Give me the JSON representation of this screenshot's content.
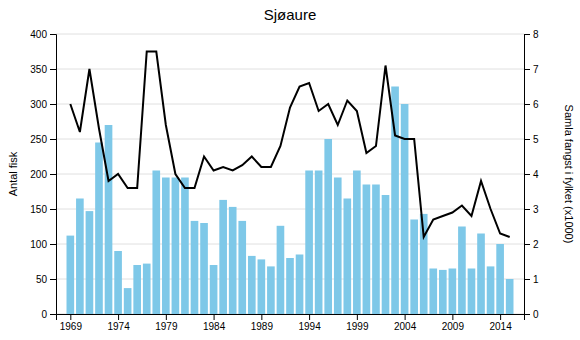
{
  "chart_data": {
    "type": "bar",
    "title": "Sjøaure",
    "ylabel": "Antal fisk",
    "y2label": "Samla fangst i fylket (x1000)",
    "x": [
      1969,
      1970,
      1971,
      1972,
      1973,
      1974,
      1975,
      1976,
      1977,
      1978,
      1979,
      1980,
      1981,
      1982,
      1983,
      1984,
      1985,
      1986,
      1987,
      1988,
      1989,
      1990,
      1991,
      1992,
      1993,
      1994,
      1995,
      1996,
      1997,
      1998,
      1999,
      2000,
      2001,
      2002,
      2003,
      2004,
      2005,
      2006,
      2007,
      2008,
      2009,
      2010,
      2011,
      2012,
      2013,
      2014,
      2015
    ],
    "series": [
      {
        "type": "bar",
        "color": "#7EC8E8",
        "values": [
          112,
          165,
          147,
          245,
          270,
          90,
          37,
          70,
          72,
          205,
          195,
          195,
          195,
          133,
          130,
          70,
          163,
          153,
          133,
          83,
          78,
          68,
          126,
          80,
          85,
          205,
          205,
          250,
          195,
          165,
          205,
          185,
          185,
          170,
          325,
          300,
          135,
          143,
          65,
          63,
          65,
          125,
          65,
          115,
          68,
          100,
          50
        ]
      },
      {
        "type": "line",
        "color": "black",
        "axis": "y2",
        "values": [
          6.0,
          5.2,
          7.0,
          5.3,
          3.8,
          4.0,
          3.6,
          3.6,
          7.5,
          7.5,
          5.4,
          4.0,
          3.6,
          3.6,
          4.5,
          4.1,
          4.2,
          4.1,
          4.25,
          4.5,
          4.2,
          4.2,
          4.8,
          5.9,
          6.5,
          6.6,
          5.8,
          6.0,
          5.4,
          6.1,
          5.8,
          4.6,
          4.8,
          7.1,
          5.1,
          5.0,
          5.0,
          2.2,
          2.7,
          2.8,
          2.9,
          3.1,
          2.8,
          3.8,
          3.0,
          2.3,
          2.2
        ]
      }
    ],
    "xlim": [
      1967.5,
      2016.5
    ],
    "xticks": [
      1969,
      1974,
      1979,
      1984,
      1989,
      1994,
      1999,
      2004,
      2009,
      2014
    ],
    "ylim": [
      0,
      400
    ],
    "yticks": [
      0,
      50,
      100,
      150,
      200,
      250,
      300,
      350,
      400
    ],
    "y2lim": [
      0,
      8
    ],
    "y2ticks": [
      0,
      1,
      2,
      3,
      4,
      5,
      6,
      7,
      8
    ],
    "grid": true
  }
}
